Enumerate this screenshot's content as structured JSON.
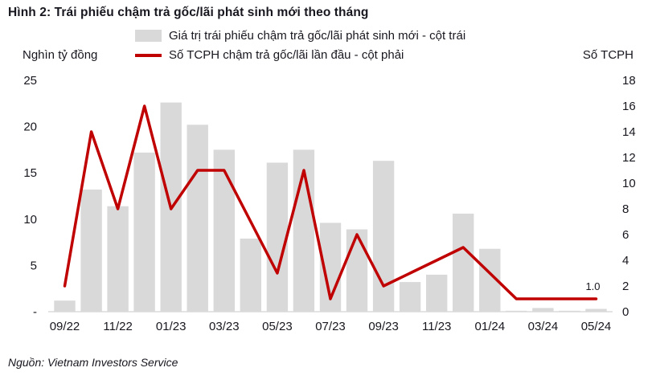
{
  "title": "Hình 2: Trái phiếu chậm trả gốc/lãi phát sinh mới theo tháng",
  "source": "Nguồn: Vietnam Investors Service",
  "left_axis_title": "Nghìn tỷ đồng",
  "right_axis_title": "Số TCPH",
  "colors": {
    "bar": "#d9d9d9",
    "line": "#c00000",
    "text": "#17171f",
    "axis_line": "#c9c9c9"
  },
  "legend": [
    {
      "label": "Giá trị trái phiếu chậm trả gốc/lãi phát sinh mới - cột trái",
      "type": "bar",
      "color": "#d9d9d9"
    },
    {
      "label": "Số TCPH chậm trả gốc/lãi lần đầu - cột phải",
      "type": "line",
      "color": "#c00000"
    }
  ],
  "chart_data": {
    "type": "bar",
    "subtype": "combo-bar-line",
    "title": "Hình 2: Trái phiếu chậm trả gốc/lãi phát sinh mới theo tháng",
    "months": [
      "09/22",
      "10/22",
      "11/22",
      "12/22",
      "01/23",
      "02/23",
      "03/23",
      "04/23",
      "05/23",
      "06/23",
      "07/23",
      "08/23",
      "09/23",
      "10/23",
      "11/23",
      "12/23",
      "01/24",
      "02/24",
      "03/24",
      "04/24",
      "05/24"
    ],
    "x_tick_labels": [
      "09/22",
      "11/22",
      "01/23",
      "03/23",
      "05/23",
      "07/23",
      "09/23",
      "11/23",
      "01/24",
      "03/24",
      "05/24"
    ],
    "series": [
      {
        "name": "Giá trị trái phiếu chậm trả gốc/lãi phát sinh mới - cột trái",
        "type": "bar",
        "axis": "left",
        "color": "#d9d9d9",
        "values": [
          1.2,
          13.2,
          11.4,
          17.2,
          22.6,
          20.2,
          17.5,
          7.9,
          16.1,
          17.5,
          9.6,
          8.9,
          16.3,
          3.2,
          4.0,
          10.6,
          6.8,
          0.1,
          0.4,
          0.1,
          0.3
        ]
      },
      {
        "name": "Số TCPH chậm trả gốc/lãi lần đầu - cột phải",
        "type": "line",
        "axis": "right",
        "color": "#c00000",
        "values": [
          2,
          14,
          8,
          16,
          8,
          11,
          11,
          7,
          3,
          11,
          1,
          6,
          2,
          3,
          4,
          5,
          3,
          1,
          1,
          1,
          1
        ]
      }
    ],
    "left_axis": {
      "title": "Nghìn tỷ đồng",
      "min": 0,
      "max": 25,
      "tick_labels": [
        "25",
        "20",
        "15",
        "10",
        "5",
        "-"
      ],
      "tick_values": [
        25,
        20,
        15,
        10,
        5,
        0
      ]
    },
    "right_axis": {
      "title": "Số TCPH",
      "min": 0,
      "max": 18,
      "tick_values": [
        18,
        16,
        14,
        12,
        10,
        8,
        6,
        4,
        2,
        0
      ]
    },
    "annotation": {
      "text": "1.0",
      "month_index": 20,
      "series": "line"
    },
    "grid": false,
    "legend_position": "top"
  }
}
